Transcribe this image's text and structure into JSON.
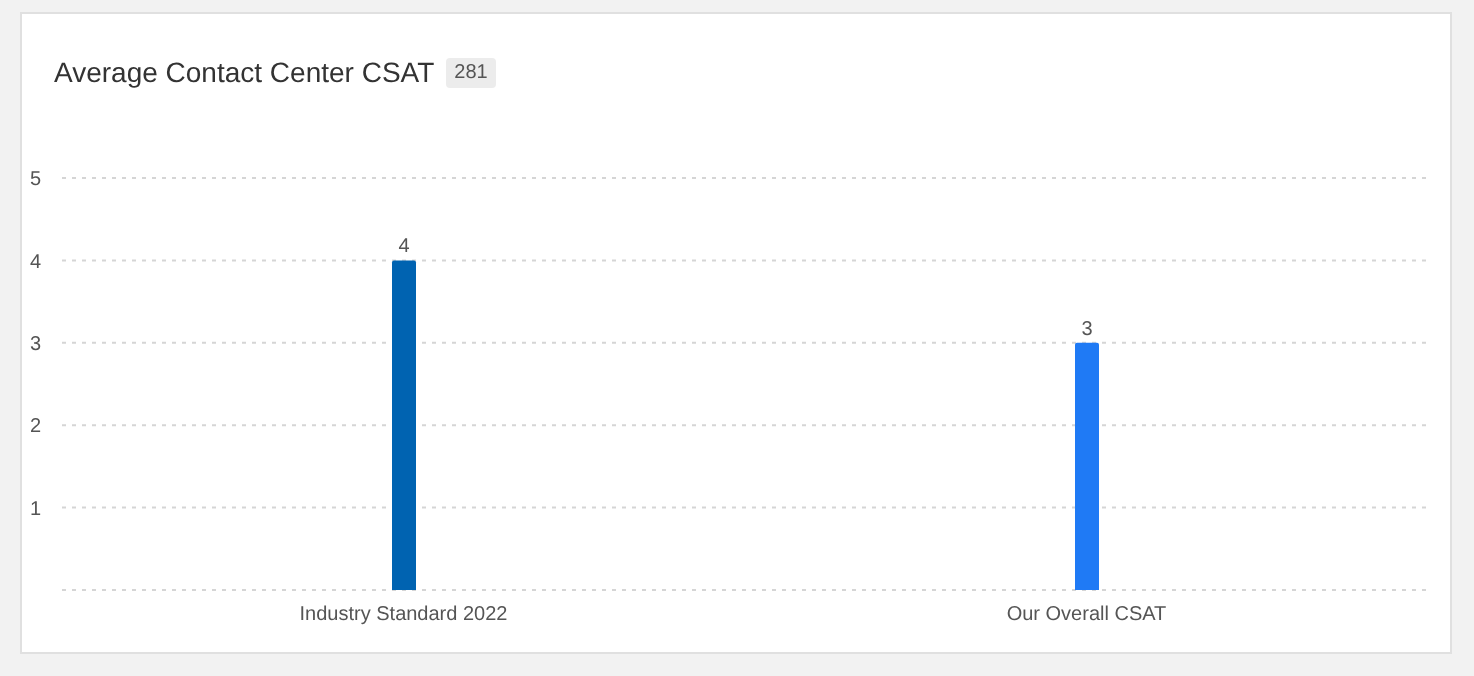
{
  "chart_data": {
    "type": "bar",
    "title": "Average Contact Center CSAT",
    "annotations": [
      "281"
    ],
    "categories": [
      "Industry Standard 2022",
      "Our Overall CSAT"
    ],
    "values": [
      4,
      3
    ],
    "colors": [
      "#0063b1",
      "#1f7af5"
    ],
    "ylim": [
      0,
      5
    ],
    "yticks": [
      {
        "value": 0,
        "label": null
      },
      1,
      2,
      3,
      4,
      5
    ],
    "grid": "y",
    "data_labels": true
  }
}
